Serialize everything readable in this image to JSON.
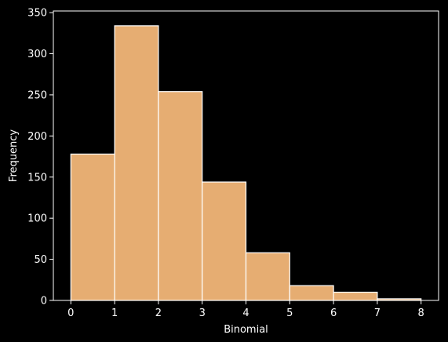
{
  "chart_data": {
    "type": "bar",
    "title": "",
    "xlabel": "Binomial",
    "ylabel": "Frequency",
    "xlim": [
      -0.4,
      8.4
    ],
    "ylim": [
      0,
      352
    ],
    "bin_edges": [
      0,
      1,
      2,
      3,
      4,
      5,
      6,
      7,
      8
    ],
    "values": [
      178,
      334,
      254,
      144,
      58,
      18,
      10,
      2
    ],
    "xticks": [
      0,
      1,
      2,
      3,
      4,
      5,
      6,
      7,
      8
    ],
    "yticks": [
      0,
      50,
      100,
      150,
      200,
      250,
      300,
      350
    ],
    "grid": false,
    "legend": "none",
    "colors": {
      "bar_fill": "#e6ad72",
      "bar_edge": "#ffffff",
      "background": "#000000",
      "axes": "#ffffff",
      "text": "#ffffff"
    }
  }
}
